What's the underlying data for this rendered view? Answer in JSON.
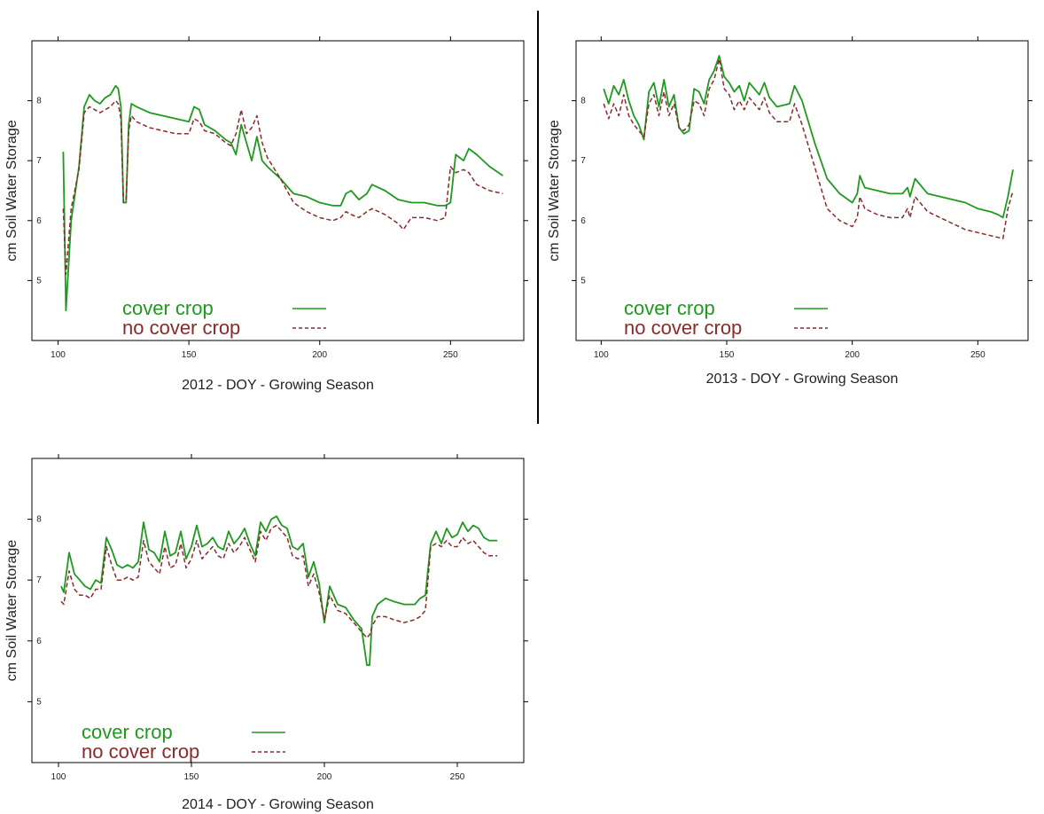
{
  "colors": {
    "cover": "#1e9a1e",
    "nocover": "#8b2a2a",
    "axis": "#000000"
  },
  "chart_data": [
    {
      "type": "line",
      "xlabel": "2012 - DOY - Growing Season",
      "ylabel": "cm Soil Water Storage",
      "xlim": [
        90,
        278
      ],
      "ylim": [
        4.0,
        9.0
      ],
      "xticks": [
        100,
        150,
        200,
        250
      ],
      "yticks": [
        5,
        6,
        7,
        8
      ],
      "legend": {
        "placement": "bottom-left",
        "entries": [
          "cover crop",
          "no cover crop"
        ]
      },
      "series": [
        {
          "name": "cover crop",
          "style": "solid",
          "x": [
            102,
            103,
            105,
            108,
            110,
            112,
            114,
            116,
            118,
            120,
            122,
            123,
            124,
            125,
            126,
            127,
            128,
            130,
            135,
            140,
            145,
            150,
            152,
            154,
            156,
            160,
            164,
            166,
            168,
            170,
            172,
            174,
            176,
            178,
            180,
            185,
            190,
            195,
            200,
            205,
            208,
            210,
            212,
            215,
            218,
            220,
            225,
            230,
            235,
            240,
            245,
            248,
            250,
            252,
            255,
            257,
            260,
            265,
            270
          ],
          "y": [
            7.15,
            4.5,
            6.0,
            6.9,
            7.9,
            8.1,
            8.0,
            7.95,
            8.05,
            8.1,
            8.25,
            8.2,
            7.9,
            6.3,
            6.3,
            7.6,
            7.95,
            7.9,
            7.8,
            7.75,
            7.7,
            7.65,
            7.9,
            7.85,
            7.6,
            7.5,
            7.35,
            7.3,
            7.1,
            7.6,
            7.3,
            7.0,
            7.4,
            7.0,
            6.9,
            6.7,
            6.45,
            6.4,
            6.3,
            6.25,
            6.25,
            6.45,
            6.5,
            6.35,
            6.45,
            6.6,
            6.5,
            6.35,
            6.3,
            6.3,
            6.25,
            6.25,
            6.3,
            7.1,
            7.0,
            7.2,
            7.1,
            6.9,
            6.75
          ]
        },
        {
          "name": "no cover crop",
          "style": "dashed",
          "x": [
            102,
            103,
            105,
            108,
            110,
            112,
            114,
            116,
            118,
            120,
            122,
            123,
            124,
            125,
            126,
            127,
            128,
            130,
            135,
            140,
            145,
            150,
            152,
            154,
            156,
            160,
            164,
            166,
            168,
            170,
            172,
            174,
            176,
            178,
            180,
            185,
            190,
            195,
            200,
            205,
            208,
            210,
            212,
            215,
            218,
            220,
            225,
            230,
            232,
            235,
            240,
            245,
            248,
            250,
            252,
            255,
            257,
            260,
            265,
            270
          ],
          "y": [
            6.2,
            5.1,
            6.2,
            6.85,
            7.8,
            7.9,
            7.85,
            7.8,
            7.85,
            7.9,
            8.0,
            7.95,
            7.7,
            6.3,
            6.35,
            7.5,
            7.75,
            7.65,
            7.55,
            7.5,
            7.45,
            7.45,
            7.7,
            7.65,
            7.5,
            7.45,
            7.3,
            7.25,
            7.45,
            7.85,
            7.45,
            7.55,
            7.75,
            7.3,
            7.05,
            6.7,
            6.3,
            6.15,
            6.05,
            6.0,
            6.05,
            6.15,
            6.1,
            6.05,
            6.15,
            6.2,
            6.1,
            5.95,
            5.85,
            6.05,
            6.05,
            6.0,
            6.05,
            6.9,
            6.8,
            6.85,
            6.8,
            6.6,
            6.5,
            6.45
          ]
        }
      ]
    },
    {
      "type": "line",
      "xlabel": "2013 - DOY - Growing Season",
      "ylabel": "cm Soil Water Storage",
      "xlim": [
        90,
        270
      ],
      "ylim": [
        4.0,
        9.0
      ],
      "xticks": [
        100,
        150,
        200,
        250
      ],
      "yticks": [
        5,
        6,
        7,
        8
      ],
      "legend": {
        "placement": "bottom-left",
        "entries": [
          "cover crop",
          "no cover crop"
        ]
      },
      "series": [
        {
          "name": "cover crop",
          "style": "solid",
          "x": [
            101,
            103,
            105,
            107,
            109,
            111,
            113,
            115,
            117,
            119,
            121,
            123,
            125,
            127,
            129,
            131,
            133,
            135,
            137,
            139,
            141,
            143,
            145,
            147,
            149,
            151,
            153,
            155,
            157,
            159,
            161,
            163,
            165,
            167,
            170,
            175,
            177,
            180,
            185,
            190,
            195,
            200,
            202,
            203,
            205,
            210,
            215,
            220,
            222,
            223,
            225,
            230,
            240,
            245,
            250,
            255,
            258,
            260,
            262,
            264
          ],
          "y": [
            8.2,
            7.95,
            8.25,
            8.1,
            8.35,
            8.0,
            7.75,
            7.6,
            7.35,
            8.15,
            8.3,
            7.9,
            8.35,
            7.9,
            8.1,
            7.55,
            7.45,
            7.5,
            8.2,
            8.15,
            7.95,
            8.35,
            8.5,
            8.75,
            8.4,
            8.3,
            8.15,
            8.25,
            8.0,
            8.3,
            8.2,
            8.1,
            8.3,
            8.05,
            7.9,
            7.95,
            8.25,
            8.0,
            7.3,
            6.7,
            6.45,
            6.3,
            6.45,
            6.75,
            6.55,
            6.5,
            6.45,
            6.45,
            6.55,
            6.4,
            6.7,
            6.45,
            6.35,
            6.3,
            6.2,
            6.15,
            6.1,
            6.05,
            6.4,
            6.85
          ]
        },
        {
          "name": "no cover crop",
          "style": "dashed",
          "x": [
            101,
            103,
            105,
            107,
            109,
            111,
            113,
            115,
            117,
            119,
            121,
            123,
            125,
            127,
            129,
            131,
            133,
            135,
            137,
            139,
            141,
            143,
            145,
            147,
            149,
            151,
            153,
            155,
            157,
            159,
            161,
            163,
            165,
            167,
            170,
            175,
            177,
            180,
            185,
            190,
            195,
            200,
            202,
            203,
            205,
            210,
            215,
            220,
            222,
            223,
            225,
            230,
            240,
            245,
            250,
            255,
            258,
            260,
            262,
            264
          ],
          "y": [
            7.95,
            7.7,
            7.95,
            7.75,
            8.1,
            7.75,
            7.6,
            7.5,
            7.4,
            7.95,
            8.1,
            7.75,
            8.15,
            7.75,
            7.95,
            7.55,
            7.5,
            7.6,
            8.0,
            7.95,
            7.75,
            8.2,
            8.35,
            8.7,
            8.2,
            8.1,
            7.85,
            8.0,
            7.85,
            8.05,
            7.95,
            7.85,
            8.05,
            7.8,
            7.65,
            7.65,
            7.95,
            7.6,
            6.9,
            6.2,
            6.0,
            5.9,
            6.05,
            6.4,
            6.2,
            6.1,
            6.05,
            6.05,
            6.2,
            6.05,
            6.4,
            6.15,
            5.95,
            5.85,
            5.8,
            5.75,
            5.72,
            5.7,
            6.2,
            6.5
          ]
        }
      ]
    },
    {
      "type": "line",
      "xlabel": "2014 - DOY - Growing Season",
      "ylabel": "cm Soil Water Storage",
      "xlim": [
        90,
        275
      ],
      "ylim": [
        4.0,
        9.0
      ],
      "xticks": [
        100,
        150,
        200,
        250
      ],
      "yticks": [
        5,
        6,
        7,
        8
      ],
      "legend": {
        "placement": "bottom-left",
        "entries": [
          "cover crop",
          "no cover crop"
        ]
      },
      "series": [
        {
          "name": "cover crop",
          "style": "solid",
          "x": [
            101,
            102,
            104,
            106,
            108,
            110,
            112,
            114,
            116,
            118,
            120,
            122,
            124,
            126,
            128,
            130,
            132,
            134,
            136,
            138,
            140,
            142,
            144,
            146,
            148,
            150,
            152,
            154,
            156,
            158,
            160,
            162,
            164,
            166,
            168,
            170,
            172,
            174,
            176,
            178,
            180,
            182,
            184,
            186,
            188,
            190,
            192,
            194,
            196,
            198,
            200,
            202,
            205,
            208,
            211,
            214,
            216,
            217,
            218,
            220,
            223,
            226,
            230,
            234,
            236,
            238,
            240,
            242,
            244,
            246,
            248,
            250,
            252,
            254,
            256,
            258,
            260,
            262,
            264,
            265
          ],
          "y": [
            6.9,
            6.8,
            7.45,
            7.1,
            7.0,
            6.9,
            6.85,
            7.0,
            6.95,
            7.7,
            7.5,
            7.25,
            7.2,
            7.25,
            7.2,
            7.3,
            7.95,
            7.5,
            7.45,
            7.3,
            7.8,
            7.4,
            7.45,
            7.8,
            7.35,
            7.55,
            7.9,
            7.55,
            7.6,
            7.7,
            7.55,
            7.5,
            7.8,
            7.6,
            7.7,
            7.85,
            7.6,
            7.4,
            7.95,
            7.8,
            8.0,
            8.05,
            7.9,
            7.85,
            7.55,
            7.5,
            7.6,
            7.05,
            7.3,
            6.95,
            6.3,
            6.9,
            6.6,
            6.55,
            6.35,
            6.2,
            5.6,
            5.6,
            6.4,
            6.6,
            6.7,
            6.65,
            6.6,
            6.6,
            6.7,
            6.75,
            7.6,
            7.8,
            7.6,
            7.85,
            7.7,
            7.75,
            7.95,
            7.8,
            7.9,
            7.85,
            7.7,
            7.65,
            7.65,
            7.65
          ]
        },
        {
          "name": "no cover crop",
          "style": "dashed",
          "x": [
            101,
            102,
            104,
            106,
            108,
            110,
            112,
            114,
            116,
            118,
            120,
            122,
            124,
            126,
            128,
            130,
            132,
            134,
            136,
            138,
            140,
            142,
            144,
            146,
            148,
            150,
            152,
            154,
            156,
            158,
            160,
            162,
            164,
            166,
            168,
            170,
            172,
            174,
            176,
            178,
            180,
            182,
            184,
            186,
            188,
            190,
            192,
            194,
            196,
            198,
            200,
            202,
            205,
            208,
            211,
            214,
            216,
            217,
            218,
            220,
            223,
            226,
            230,
            234,
            236,
            238,
            240,
            242,
            244,
            246,
            248,
            250,
            252,
            254,
            256,
            258,
            260,
            262,
            264,
            265
          ],
          "y": [
            6.65,
            6.6,
            7.15,
            6.85,
            6.75,
            6.75,
            6.7,
            6.85,
            6.85,
            7.55,
            7.25,
            7.0,
            7.0,
            7.05,
            7.0,
            7.05,
            7.65,
            7.3,
            7.2,
            7.1,
            7.55,
            7.2,
            7.25,
            7.6,
            7.2,
            7.35,
            7.65,
            7.35,
            7.45,
            7.55,
            7.4,
            7.35,
            7.6,
            7.45,
            7.55,
            7.7,
            7.5,
            7.3,
            7.8,
            7.65,
            7.85,
            7.9,
            7.8,
            7.7,
            7.4,
            7.35,
            7.4,
            6.9,
            7.1,
            6.8,
            6.35,
            6.75,
            6.5,
            6.45,
            6.3,
            6.15,
            6.05,
            6.1,
            6.25,
            6.4,
            6.4,
            6.35,
            6.3,
            6.35,
            6.4,
            6.5,
            7.55,
            7.6,
            7.55,
            7.65,
            7.55,
            7.55,
            7.7,
            7.6,
            7.65,
            7.55,
            7.45,
            7.4,
            7.4,
            7.4
          ]
        }
      ]
    }
  ]
}
